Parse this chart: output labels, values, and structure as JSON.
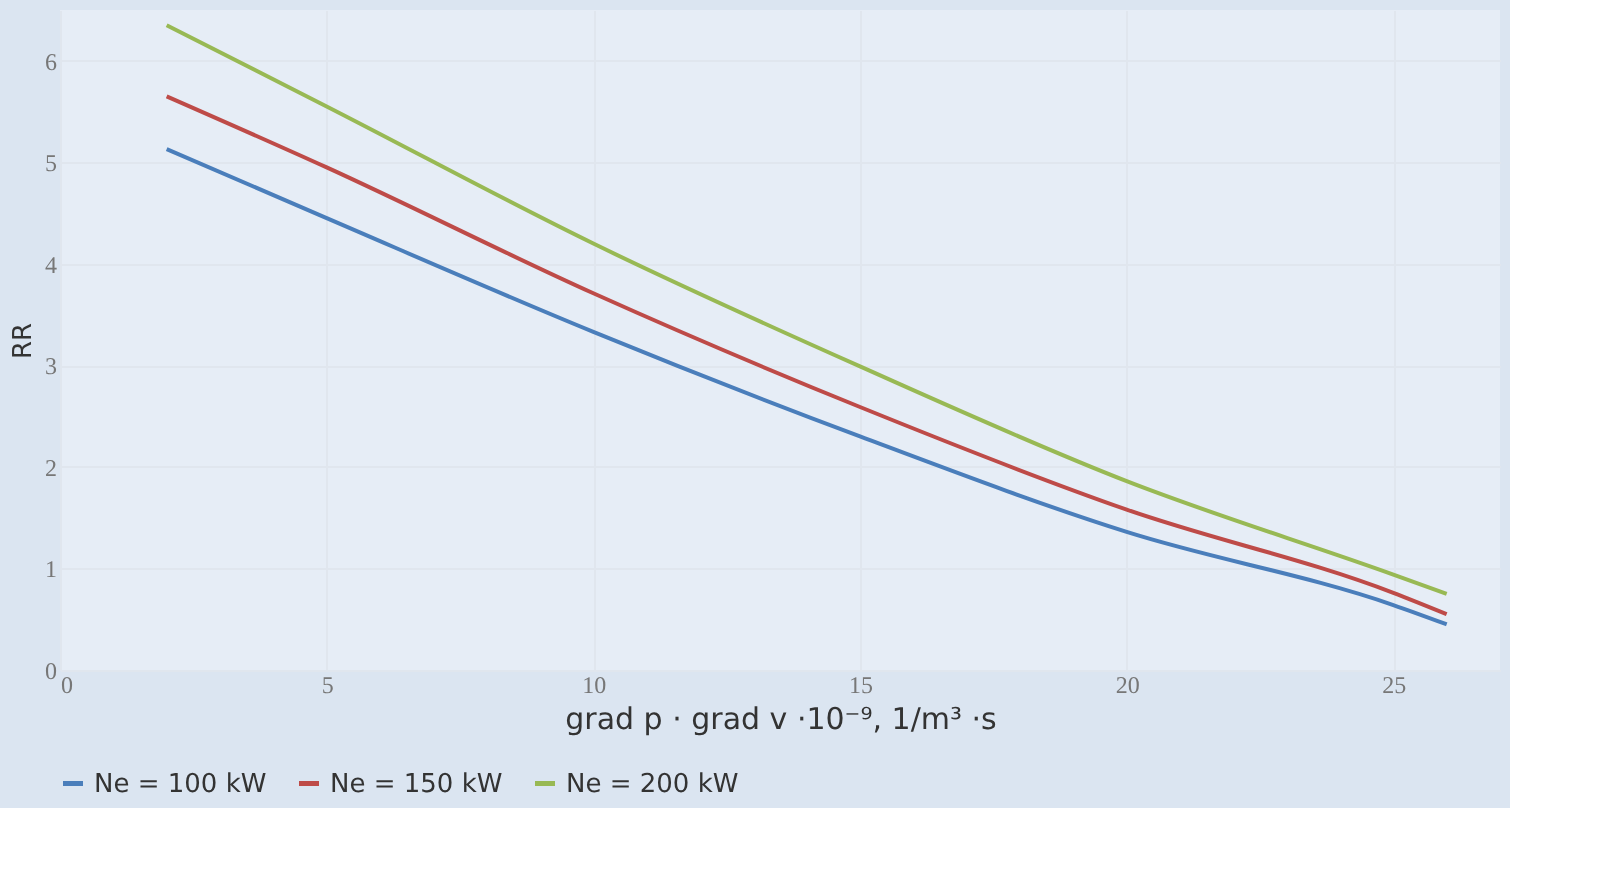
{
  "chart_data": {
    "type": "line",
    "xlabel": "grad p · grad v ·10⁻⁹, 1/m³ ·s",
    "ylabel": "RR",
    "x": [
      2,
      5,
      10,
      15,
      20,
      25,
      26
    ],
    "series": [
      {
        "name": "Ne = 100 kW",
        "color": "#4a7ebb",
        "values": [
          5.13,
          4.45,
          3.33,
          2.3,
          1.36,
          0.64,
          0.45
        ]
      },
      {
        "name": "Ne = 150 kW",
        "color": "#be4b48",
        "values": [
          5.65,
          4.95,
          3.71,
          2.59,
          1.58,
          0.76,
          0.55
        ]
      },
      {
        "name": "Ne = 200 kW",
        "color": "#98b954",
        "values": [
          6.35,
          5.55,
          4.2,
          2.99,
          1.86,
          0.94,
          0.75
        ]
      }
    ],
    "xlim": [
      0,
      27
    ],
    "xticks": [
      0,
      5,
      10,
      15,
      20,
      25
    ],
    "ylim": [
      0,
      6.5
    ],
    "yticks": [
      0,
      1,
      2,
      3,
      4,
      5,
      6
    ],
    "grid": true,
    "legend": "bottom",
    "marker": "none",
    "line_style": "solid"
  }
}
